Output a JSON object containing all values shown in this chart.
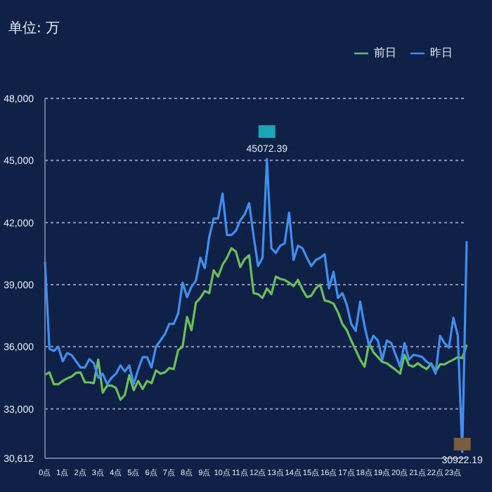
{
  "chart_data": {
    "type": "line",
    "ylabel": "单位: 万",
    "categories": [
      "0点",
      null,
      null,
      null,
      "1点",
      null,
      null,
      null,
      "2点",
      null,
      null,
      null,
      "3点",
      null,
      null,
      null,
      "4点",
      null,
      null,
      null,
      "5点",
      null,
      null,
      null,
      "6点",
      null,
      null,
      null,
      "7点",
      null,
      null,
      null,
      "8点",
      null,
      null,
      null,
      "9点",
      null,
      null,
      null,
      "10点",
      null,
      null,
      null,
      "11点",
      null,
      null,
      null,
      "12点",
      null,
      null,
      null,
      "13点",
      null,
      null,
      null,
      "14点",
      null,
      null,
      null,
      "15点",
      null,
      null,
      null,
      "16点",
      null,
      null,
      null,
      "17点",
      null,
      null,
      null,
      "18点",
      null,
      null,
      null,
      "19点",
      null,
      null,
      null,
      "20点",
      null,
      null,
      null,
      "21点",
      null,
      null,
      null,
      "22点",
      null,
      null,
      null,
      "23点",
      null,
      null,
      null
    ],
    "series": [
      {
        "name": "前日",
        "color": "#6abf5a",
        "values": [
          34650,
          34760,
          34190,
          34190,
          34350,
          34470,
          34560,
          34740,
          34760,
          34280,
          34280,
          34240,
          35380,
          33780,
          34120,
          34120,
          34010,
          33440,
          33670,
          34630,
          33900,
          34350,
          33960,
          34350,
          34240,
          34860,
          34700,
          34760,
          34970,
          34920,
          35840,
          36000,
          37440,
          36800,
          38130,
          38360,
          38700,
          38590,
          39690,
          39390,
          39960,
          40300,
          40760,
          40600,
          39850,
          40240,
          40420,
          38590,
          38540,
          38360,
          38820,
          38540,
          39390,
          39280,
          39230,
          39090,
          38930,
          39230,
          38770,
          38400,
          38470,
          38820,
          39000,
          38240,
          38180,
          38080,
          37670,
          37100,
          36800,
          36300,
          35840,
          35380,
          35040,
          36180,
          35730,
          35500,
          35270,
          35200,
          35040,
          34880,
          34700,
          35610,
          35110,
          35040,
          35200,
          35040,
          34920,
          35200,
          34810,
          35150,
          35150,
          35270,
          35380,
          35500,
          35450,
          36100
        ]
      },
      {
        "name": "昨日",
        "color": "#3f8ef0",
        "values": [
          40100,
          35900,
          35800,
          36000,
          35300,
          35700,
          35600,
          35300,
          35000,
          35000,
          35400,
          35200,
          34500,
          34700,
          34200,
          34500,
          34700,
          35100,
          34800,
          35100,
          34200,
          34900,
          35500,
          35500,
          35000,
          36000,
          36300,
          36600,
          37100,
          37100,
          37600,
          39100,
          38400,
          38900,
          39200,
          40300,
          39800,
          41300,
          42200,
          42200,
          43400,
          41400,
          41400,
          41600,
          42100,
          42400,
          42940,
          41340,
          39900,
          40300,
          45072.39,
          40760,
          40530,
          40880,
          41000,
          42480,
          40190,
          40880,
          40760,
          40300,
          39900,
          40190,
          40300,
          40470,
          38820,
          39620,
          38360,
          38590,
          38020,
          37100,
          36760,
          38180,
          36990,
          36070,
          36530,
          36300,
          35380,
          36300,
          36180,
          35610,
          35040,
          36180,
          35380,
          35610,
          35570,
          35500,
          35270,
          35150,
          34700,
          36530,
          36180,
          35960,
          37400,
          36530,
          30922.19,
          41100
        ]
      }
    ],
    "ylim": [
      30612,
      48000
    ],
    "yticks": [
      {
        "value": 30612,
        "label": "30,612"
      },
      {
        "value": 33000,
        "label": "33,000"
      },
      {
        "value": 36000,
        "label": "36,000"
      },
      {
        "value": 39000,
        "label": "39,000"
      },
      {
        "value": 42000,
        "label": "42,000"
      },
      {
        "value": 45000,
        "label": "45,000"
      },
      {
        "value": 48000,
        "label": "48,000"
      }
    ],
    "grid": "y",
    "legend": "top right",
    "marker": "none",
    "annotations": [
      {
        "text": "45072.39",
        "y": 45072.39
      },
      {
        "text": "30922.19",
        "y": 30922.19
      }
    ]
  }
}
